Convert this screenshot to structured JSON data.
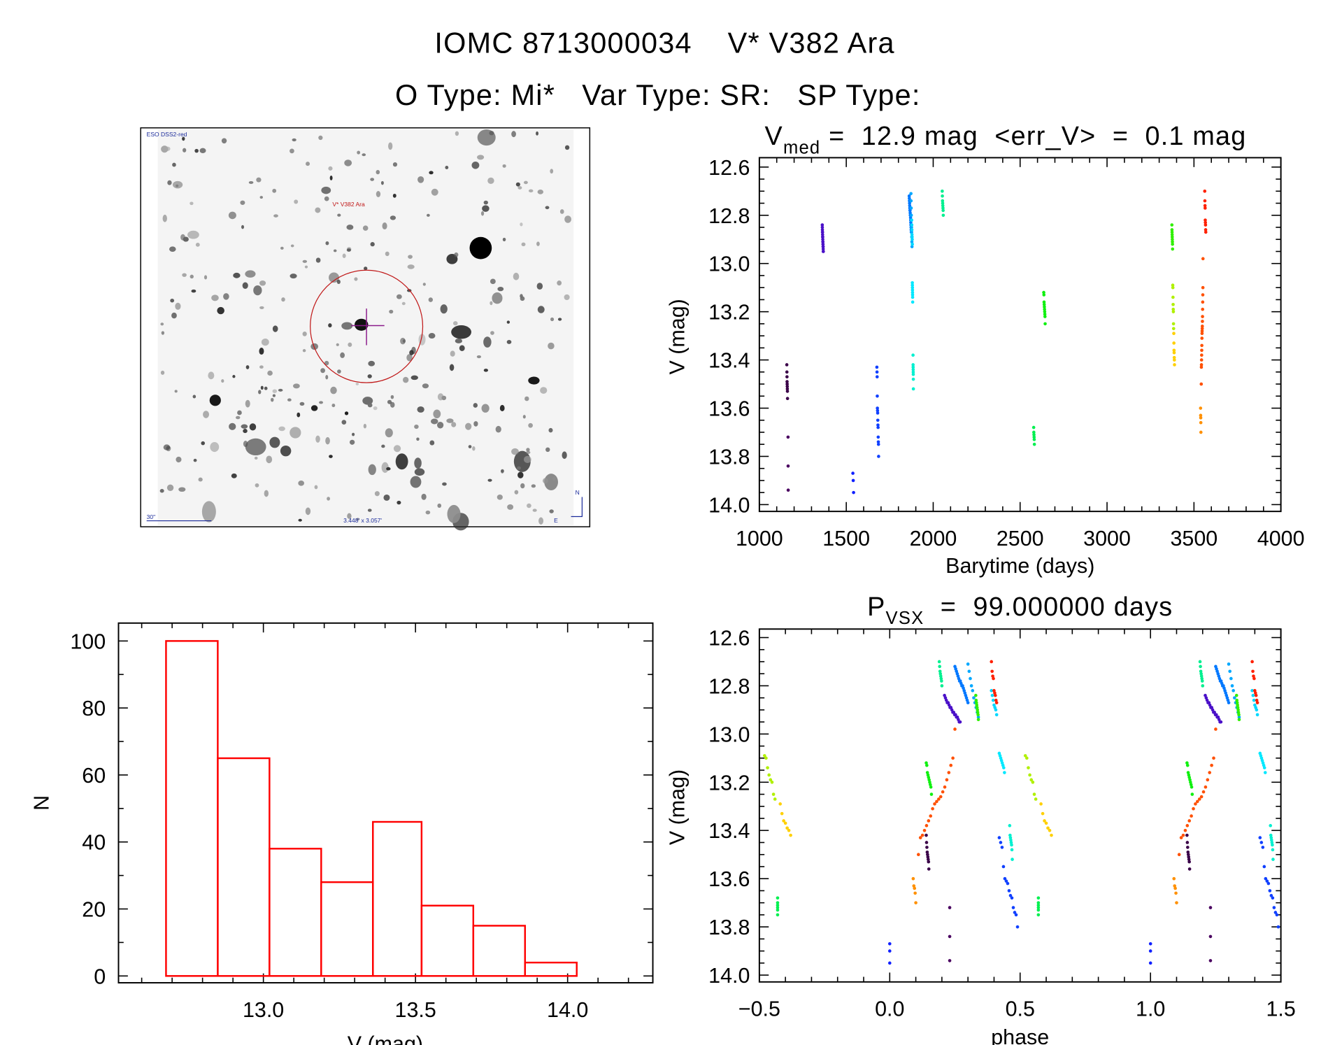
{
  "header": {
    "title": "IOMC 8713000034    V* V382 Ara",
    "subtitle": "O Type: Mi*   Var Type: SR:   SP Type:"
  },
  "finder_image": {
    "survey_label": "ESO DSS2-red",
    "target_label": "V* V382 Ara",
    "scale_label": "30\"",
    "fov_label": "3.448' x 3.057'",
    "north_label": "N",
    "east_label": "E",
    "circle_color": "#c01818",
    "cross_color": "#8a1a8a"
  },
  "chart_data": [
    {
      "id": "lightcurve",
      "type": "scatter",
      "title_main": "V",
      "title_sub": "med",
      "title_rest": " =  12.9 mag  <err_V>  =  0.1 mag",
      "xlabel": "Barytime (days)",
      "ylabel": "V (mag)",
      "xlim": [
        1000,
        4000
      ],
      "ylim": [
        12.6,
        14.0
      ],
      "y_inverted": true,
      "xticks": [
        "1000",
        "1500",
        "2000",
        "2500",
        "3000",
        "3500",
        "4000"
      ],
      "yticks": [
        "12.6",
        "12.8",
        "13.0",
        "13.2",
        "13.4",
        "13.6",
        "13.8",
        "14.0"
      ]
    },
    {
      "id": "phased",
      "type": "scatter",
      "title_main": "P",
      "title_sub": "VSX",
      "title_rest": "  =  99.000000 days",
      "period_days": 99.0,
      "xlabel": "phase",
      "ylabel": "V (mag)",
      "xlim": [
        -0.5,
        1.5
      ],
      "ylim": [
        12.6,
        14.0
      ],
      "y_inverted": true,
      "xticks": [
        "−0.5",
        "0.0",
        "0.5",
        "1.0",
        "1.5"
      ],
      "yticks": [
        "12.6",
        "12.8",
        "13.0",
        "13.2",
        "13.4",
        "13.6",
        "13.8",
        "14.0"
      ]
    },
    {
      "id": "histogram",
      "type": "bar",
      "xlabel": "V (mag)",
      "ylabel": "N",
      "xlim": [
        12.52,
        14.28
      ],
      "ylim": [
        -2,
        105
      ],
      "bin_edges": [
        12.68,
        12.85,
        13.02,
        13.19,
        13.36,
        13.52,
        13.69,
        13.86,
        14.03
      ],
      "values": [
        100,
        65,
        38,
        28,
        46,
        21,
        15,
        4
      ],
      "bar_color": "#ff0000",
      "xticks": [
        "13.0",
        "13.5",
        "14.0"
      ],
      "yticks": [
        "0",
        "20",
        "40",
        "60",
        "80",
        "100"
      ]
    }
  ],
  "observations": [
    {
      "color": "#3a0048",
      "t": [
        1158,
        1162
      ],
      "phase": [
        0.14,
        0.15
      ],
      "mags": [
        13.42,
        13.45,
        13.47,
        13.49,
        13.5,
        13.51,
        13.52,
        13.53,
        13.56
      ]
    },
    {
      "color": "#4a0060",
      "t": [
        1165,
        1166
      ],
      "phase": [
        0.23,
        0.23
      ],
      "mags": [
        13.72,
        13.84,
        13.94
      ]
    },
    {
      "color": "#4a10c8",
      "t": [
        1362,
        1368
      ],
      "phase": [
        0.21,
        0.27
      ],
      "mags": [
        12.84,
        12.85,
        12.86,
        12.87,
        12.87,
        12.88,
        12.89,
        12.89,
        12.9,
        12.91,
        12.91,
        12.92,
        12.92,
        12.93,
        12.93,
        12.94,
        12.95,
        12.95
      ]
    },
    {
      "color": "#1020ff",
      "t": [
        1538,
        1542
      ],
      "phase": [
        0.0,
        0.0
      ],
      "mags": [
        13.87,
        13.9,
        13.95
      ]
    },
    {
      "color": "#1040ff",
      "t": [
        1676,
        1686
      ],
      "phase": [
        0.42,
        0.49
      ],
      "mags": [
        13.43,
        13.45,
        13.47,
        13.55,
        13.6,
        13.61,
        13.62,
        13.65,
        13.67,
        13.68,
        13.72,
        13.74,
        13.75,
        13.8
      ]
    },
    {
      "color": "#0078ff",
      "t": [
        1862,
        1874
      ],
      "phase": [
        0.25,
        0.3
      ],
      "mags": [
        12.72,
        12.73,
        12.74,
        12.75,
        12.76,
        12.77,
        12.78,
        12.78,
        12.79,
        12.8,
        12.8,
        12.81,
        12.82,
        12.83,
        12.84,
        12.85,
        12.86,
        12.87
      ]
    },
    {
      "color": "#00a8ff",
      "t": [
        1872,
        1878
      ],
      "phase": [
        0.3,
        0.34
      ],
      "mags": [
        12.71,
        12.74,
        12.77,
        12.8,
        12.82,
        12.85,
        12.87,
        12.89,
        12.91,
        12.93
      ]
    },
    {
      "color": "#00d8ff",
      "t": [
        1876,
        1880
      ],
      "phase": [
        0.39,
        0.41
      ],
      "mags": [
        12.82,
        12.84,
        12.86,
        12.88,
        12.89,
        12.9,
        12.92
      ]
    },
    {
      "color": "#00e8ff",
      "t": [
        1880,
        1882
      ],
      "phase": [
        0.42,
        0.44
      ],
      "mags": [
        13.08,
        13.09,
        13.1,
        13.11,
        13.12,
        13.13,
        13.14,
        13.16
      ]
    },
    {
      "color": "#00f0d0",
      "t": [
        1884,
        1886
      ],
      "phase": [
        0.46,
        0.47
      ],
      "mags": [
        13.38,
        13.42,
        13.43,
        13.44,
        13.45,
        13.46,
        13.48,
        13.52
      ]
    },
    {
      "color": "#00f090",
      "t": [
        2052,
        2058
      ],
      "phase": [
        0.19,
        0.2
      ],
      "mags": [
        12.7,
        12.72,
        12.74,
        12.75,
        12.76,
        12.77,
        12.78,
        12.8
      ]
    },
    {
      "color": "#00f050",
      "t": [
        2578,
        2582
      ],
      "phase": [
        0.57,
        0.57
      ],
      "mags": [
        13.68,
        13.7,
        13.71,
        13.72,
        13.73,
        13.75
      ]
    },
    {
      "color": "#10f010",
      "t": [
        2636,
        2644
      ],
      "phase": [
        0.14,
        0.16
      ],
      "mags": [
        13.12,
        13.13,
        13.16,
        13.17,
        13.18,
        13.19,
        13.2,
        13.21,
        13.22,
        13.25
      ]
    },
    {
      "color": "#30f000",
      "t": [
        3373,
        3377
      ],
      "phase": [
        0.33,
        0.34
      ],
      "mags": [
        12.84,
        12.86,
        12.87,
        12.88,
        12.89,
        12.9,
        12.91,
        12.92,
        12.94
      ]
    },
    {
      "color": "#b0f000",
      "t": [
        3378,
        3383
      ],
      "phase": [
        0.52,
        0.56
      ],
      "mags": [
        13.09,
        13.1,
        13.14,
        13.17,
        13.19,
        13.2,
        13.25,
        13.27
      ]
    },
    {
      "color": "#ffd000",
      "t": [
        3384,
        3388
      ],
      "phase": [
        0.58,
        0.62
      ],
      "mags": [
        13.29,
        13.33,
        13.36,
        13.37,
        13.39,
        13.4,
        13.42
      ]
    },
    {
      "color": "#ff2000",
      "t": [
        3562,
        3568
      ],
      "phase": [
        0.39,
        0.41
      ],
      "mags": [
        12.7,
        12.74,
        12.76,
        12.77,
        12.82,
        12.83,
        12.84,
        12.86,
        12.87
      ]
    },
    {
      "color": "#ff5000",
      "t": [
        3542,
        3552
      ],
      "phase": [
        0.11,
        0.25
      ],
      "mags": [
        13.5,
        13.43,
        13.42,
        13.4,
        13.38,
        13.36,
        13.34,
        13.31,
        13.29,
        13.28,
        13.27,
        13.26,
        13.24,
        13.22,
        13.19,
        13.16,
        13.13,
        13.1,
        12.98
      ]
    },
    {
      "color": "#ff9000",
      "t": [
        3538,
        3540
      ],
      "phase": [
        0.09,
        0.1
      ],
      "mags": [
        13.6,
        13.63,
        13.64,
        13.66,
        13.7
      ]
    }
  ]
}
